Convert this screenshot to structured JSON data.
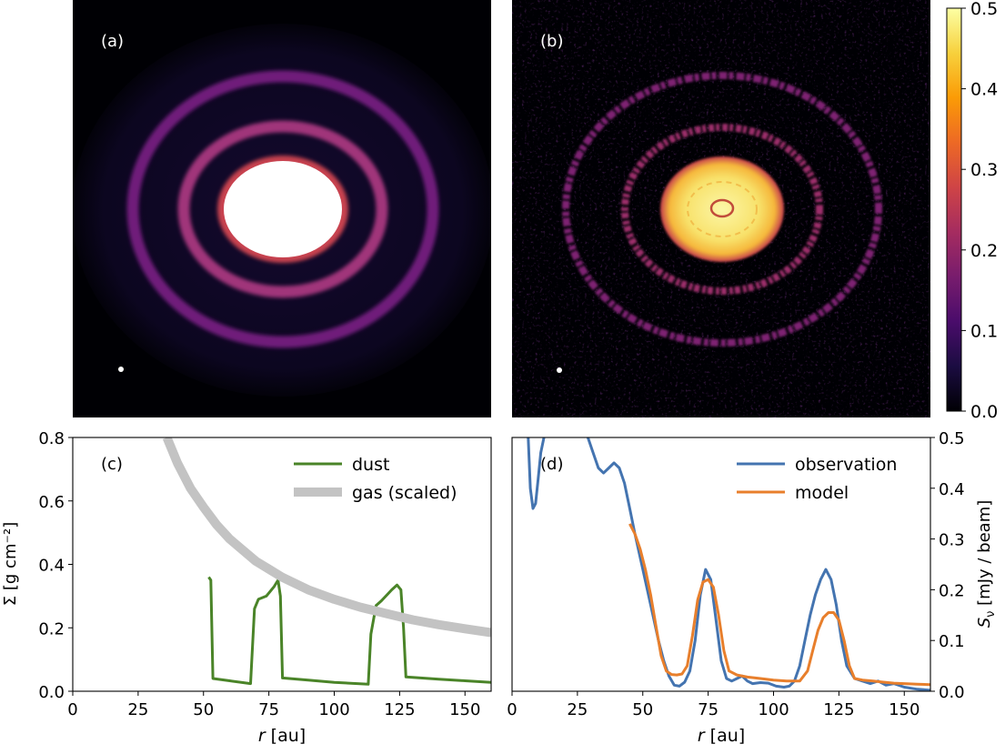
{
  "panels": {
    "a": {
      "label": "(a)"
    },
    "b": {
      "label": "(b)"
    },
    "c": {
      "label": "(c)"
    },
    "d": {
      "label": "(d)"
    }
  },
  "colorbar": {
    "ticks": [
      "0.0",
      "0.1",
      "0.2",
      "0.3",
      "0.4",
      "0.5"
    ],
    "colormap": "inferno",
    "stops": [
      "#000004",
      "#1b0c41",
      "#4a0c6b",
      "#781c6d",
      "#a52c60",
      "#cf4446",
      "#ed6925",
      "#fb9b06",
      "#f7d13d",
      "#fcffa4"
    ]
  },
  "chart_data": [
    {
      "type": "image",
      "panel": "a",
      "description_source": "model image",
      "rings_radius_au": [
        75,
        122
      ],
      "saturated_core_radius_au": 50,
      "beam_marker": true
    },
    {
      "type": "image",
      "panel": "b",
      "description_source": "observation image",
      "rings_radius_au": [
        75,
        122
      ],
      "core_radius_au": 50,
      "beam_marker": true
    },
    {
      "type": "line",
      "panel": "c",
      "xlabel_italic": "r",
      "xlabel_rest": " [au]",
      "ylabel": "Σ [g cm⁻²]",
      "xlim": [
        0,
        160
      ],
      "ylim": [
        0,
        0.8
      ],
      "xticks": [
        0,
        25,
        50,
        75,
        100,
        125,
        150
      ],
      "yticks": [
        0.0,
        0.2,
        0.4,
        0.6,
        0.8
      ],
      "legend_position": "top-right",
      "series": [
        {
          "name": "dust",
          "color": "#4a8428",
          "x": [
            52,
            52.8,
            53.6,
            60,
            68,
            69.5,
            71,
            74,
            77,
            78.5,
            79.4,
            80.2,
            90,
            100,
            113,
            114,
            116,
            118,
            122,
            124,
            125.5,
            126.5,
            127.4,
            140,
            150,
            160
          ],
          "y": [
            0.36,
            0.35,
            0.04,
            0.033,
            0.024,
            0.26,
            0.29,
            0.3,
            0.33,
            0.35,
            0.3,
            0.042,
            0.035,
            0.028,
            0.022,
            0.18,
            0.27,
            0.285,
            0.32,
            0.335,
            0.32,
            0.2,
            0.045,
            0.038,
            0.033,
            0.028
          ]
        },
        {
          "name": "gas (scaled)",
          "color": "#c3c3c3",
          "x": [
            36,
            40,
            45,
            50,
            55,
            60,
            65,
            70,
            75,
            80,
            90,
            100,
            110,
            120,
            130,
            140,
            150,
            160
          ],
          "y": [
            0.8,
            0.72,
            0.64,
            0.58,
            0.525,
            0.48,
            0.445,
            0.41,
            0.385,
            0.36,
            0.32,
            0.29,
            0.265,
            0.245,
            0.225,
            0.21,
            0.197,
            0.185
          ]
        }
      ]
    },
    {
      "type": "line",
      "panel": "d",
      "xlabel_italic": "r",
      "xlabel_rest": " [au]",
      "ylabel": "S_ν [mJy / beam]",
      "xlim": [
        0,
        160
      ],
      "ylim": [
        0,
        0.5
      ],
      "xticks": [
        0,
        25,
        50,
        75,
        100,
        125,
        150
      ],
      "yticks": [
        0.0,
        0.1,
        0.2,
        0.3,
        0.4,
        0.5
      ],
      "legend_position": "top-right",
      "series": [
        {
          "name": "observation",
          "color": "#4474b0",
          "x": [
            6,
            7,
            8,
            9,
            10,
            11,
            13,
            15,
            17,
            19,
            21,
            23,
            25,
            27,
            29,
            31,
            33,
            35,
            37,
            39,
            41,
            43,
            45,
            47,
            50,
            53,
            56,
            58,
            60,
            62,
            64,
            66,
            68,
            70,
            72,
            74,
            76,
            78,
            80,
            82,
            84,
            86,
            88,
            90,
            92,
            95,
            98,
            101,
            104,
            106,
            108,
            110,
            112,
            114,
            116,
            118,
            120,
            122,
            124,
            126,
            128,
            131,
            134,
            137,
            140,
            143,
            146,
            150,
            155,
            160
          ],
          "y": [
            0.52,
            0.4,
            0.36,
            0.37,
            0.42,
            0.47,
            0.52,
            0.55,
            0.56,
            0.54,
            0.51,
            0.52,
            0.55,
            0.53,
            0.5,
            0.47,
            0.44,
            0.43,
            0.44,
            0.45,
            0.44,
            0.41,
            0.36,
            0.31,
            0.24,
            0.17,
            0.1,
            0.06,
            0.03,
            0.012,
            0.01,
            0.018,
            0.04,
            0.1,
            0.19,
            0.24,
            0.22,
            0.14,
            0.06,
            0.025,
            0.02,
            0.025,
            0.03,
            0.02,
            0.015,
            0.017,
            0.016,
            0.01,
            0.008,
            0.01,
            0.02,
            0.05,
            0.1,
            0.15,
            0.19,
            0.22,
            0.24,
            0.22,
            0.17,
            0.1,
            0.05,
            0.025,
            0.02,
            0.015,
            0.02,
            0.012,
            0.015,
            0.008,
            0.004,
            0.002
          ]
        },
        {
          "name": "model",
          "color": "#e87f2c",
          "x": [
            45,
            47,
            49,
            51,
            53,
            55,
            57,
            59,
            61,
            63,
            65,
            67,
            69,
            71,
            73,
            75,
            77,
            79,
            81,
            83,
            86,
            90,
            95,
            100,
            105,
            110,
            113,
            115,
            117,
            119,
            121,
            123,
            125,
            127,
            129,
            131,
            134,
            138,
            142,
            146,
            150,
            155,
            160
          ],
          "y": [
            0.33,
            0.31,
            0.28,
            0.24,
            0.19,
            0.13,
            0.07,
            0.04,
            0.033,
            0.032,
            0.034,
            0.05,
            0.11,
            0.18,
            0.215,
            0.22,
            0.205,
            0.15,
            0.08,
            0.04,
            0.032,
            0.028,
            0.025,
            0.022,
            0.02,
            0.02,
            0.04,
            0.08,
            0.12,
            0.145,
            0.155,
            0.155,
            0.14,
            0.1,
            0.05,
            0.025,
            0.022,
            0.02,
            0.018,
            0.016,
            0.015,
            0.014,
            0.013
          ]
        }
      ]
    }
  ]
}
